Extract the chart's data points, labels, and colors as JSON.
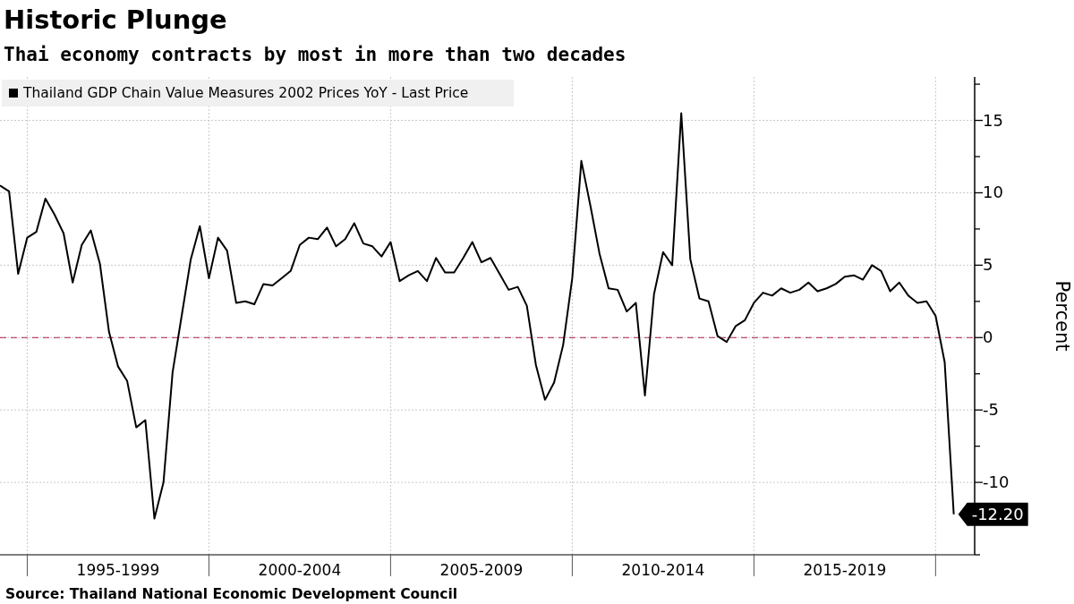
{
  "chart_data": {
    "type": "line",
    "title": "Historic Plunge",
    "subtitle": "Thai economy contracts by most in more than two decades",
    "ylabel": "Percent",
    "annotations": [
      "Source: Thailand National Economic Development Council"
    ],
    "categories": [
      null,
      null,
      null,
      null,
      null,
      null,
      null,
      null,
      null,
      null,
      null,
      null,
      null,
      "1995-1999",
      null,
      null,
      null,
      null,
      null,
      null,
      null,
      null,
      null,
      null,
      null,
      null,
      null,
      null,
      null,
      null,
      null,
      null,
      null,
      "2000-2004",
      null,
      null,
      null,
      null,
      null,
      null,
      null,
      null,
      null,
      null,
      null,
      null,
      null,
      null,
      null,
      null,
      null,
      null,
      null,
      "2005-2009",
      null,
      null,
      null,
      null,
      null,
      null,
      null,
      null,
      null,
      null,
      null,
      null,
      null,
      null,
      null,
      null,
      null,
      null,
      null,
      "2010-2014",
      null,
      null,
      null,
      null,
      null,
      null,
      null,
      null,
      null,
      null,
      null,
      null,
      null,
      null,
      null,
      null,
      null,
      null,
      null,
      "2015-2019",
      null,
      null,
      null,
      null,
      null,
      null,
      null,
      null,
      null,
      null,
      null,
      null
    ],
    "series": [
      {
        "name": "Thailand GDP Chain Value Measures 2002 Prices YoY - Last Price",
        "color": "#000000",
        "values": [
          10.5,
          10.1,
          4.4,
          6.9,
          7.3,
          9.6,
          8.5,
          7.2,
          3.8,
          6.4,
          7.4,
          5.1,
          0.4,
          -2.0,
          -3.0,
          -6.2,
          -5.7,
          -12.5,
          -10.0,
          -2.4,
          1.5,
          5.4,
          7.7,
          4.1,
          6.9,
          6.0,
          2.4,
          2.5,
          2.3,
          3.7,
          3.6,
          4.1,
          4.6,
          6.4,
          6.9,
          6.8,
          7.6,
          6.3,
          6.8,
          7.9,
          6.5,
          6.3,
          5.6,
          6.6,
          3.9,
          4.3,
          4.6,
          3.9,
          5.5,
          4.5,
          4.5,
          5.5,
          6.6,
          5.2,
          5.5,
          4.4,
          3.3,
          3.5,
          2.2,
          -1.9,
          -4.3,
          -3.1,
          -0.5,
          4.1,
          12.2,
          9.1,
          5.8,
          3.4,
          3.3,
          1.8,
          2.4,
          -4.0,
          3.0,
          5.9,
          5.0,
          15.5,
          5.4,
          2.7,
          2.5,
          0.1,
          -0.3,
          0.8,
          1.2,
          2.4,
          3.1,
          2.9,
          3.4,
          3.1,
          3.3,
          3.8,
          3.2,
          3.4,
          3.7,
          4.2,
          4.3,
          4.0,
          5.0,
          4.6,
          3.2,
          3.8,
          2.9,
          2.4,
          2.5,
          1.5,
          -1.7,
          -12.2
        ],
        "value_labels": [
          null,
          null,
          null,
          null,
          null,
          null,
          null,
          null,
          null,
          null,
          null,
          null,
          null,
          null,
          null,
          null,
          null,
          null,
          null,
          null,
          null,
          null,
          null,
          null,
          null,
          null,
          null,
          null,
          null,
          null,
          null,
          null,
          null,
          null,
          null,
          null,
          null,
          null,
          null,
          null,
          null,
          null,
          null,
          null,
          null,
          null,
          null,
          null,
          null,
          null,
          null,
          null,
          null,
          null,
          null,
          null,
          null,
          null,
          null,
          null,
          null,
          null,
          null,
          null,
          null,
          null,
          null,
          null,
          null,
          null,
          null,
          null,
          null,
          null,
          null,
          null,
          null,
          null,
          null,
          null,
          null,
          null,
          null,
          null,
          null,
          null,
          null,
          null,
          null,
          null,
          null,
          null,
          null,
          null,
          null,
          null,
          null,
          null,
          null,
          null,
          null,
          null,
          null,
          null,
          null,
          "-12.20"
        ]
      }
    ],
    "ylim": [
      -15,
      18
    ],
    "yticks": [
      -10,
      -5,
      0,
      5,
      10,
      15
    ],
    "ref_lines": [
      {
        "axis": "y",
        "value": 0,
        "color": "#b0234a",
        "line_style": "dashed"
      }
    ],
    "grid": true,
    "legend": "top left",
    "marker": "none",
    "line_style": "solid"
  }
}
